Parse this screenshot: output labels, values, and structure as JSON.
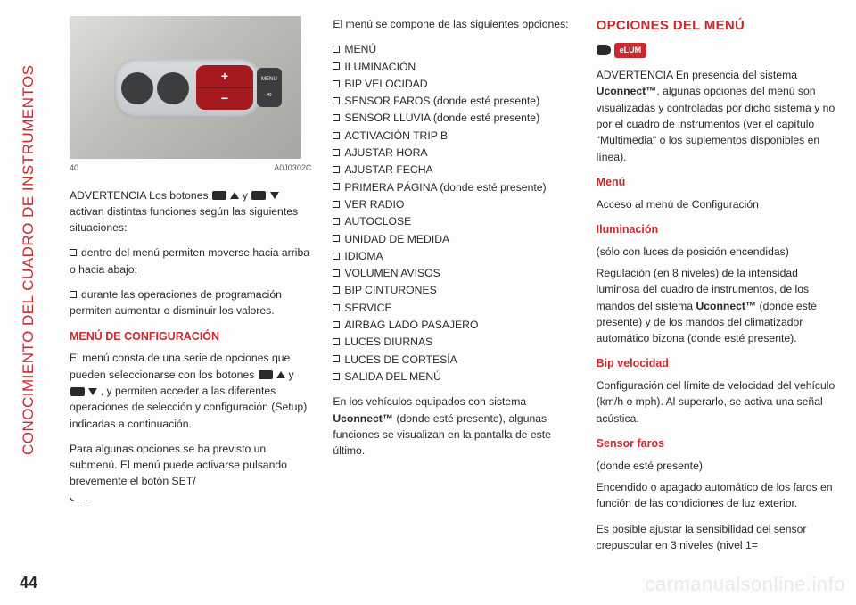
{
  "vertical_header": "CONOCIMIENTO DEL CUADRO DE INSTRUMENTOS",
  "page_number": "44",
  "watermark": "carmanualsonline.info",
  "figure": {
    "num": "40",
    "code": "A0J0302C",
    "menu_label": "MENU"
  },
  "col1": {
    "advertencia_pre": "ADVERTENCIA Los botones ",
    "advertencia_mid": " y ",
    "advertencia_post": " activan distintas funciones según las siguientes situaciones:",
    "b1": "dentro del menú permiten moverse hacia arriba o hacia abajo;",
    "b2": "durante las operaciones de programación permiten aumentar o disminuir los valores.",
    "h_menu": "MENÚ DE CONFIGURACIÓN",
    "p_menu1a": "El menú consta de una serie de opciones que pueden seleccionarse con los botones ",
    "p_menu1b": " y ",
    "p_menu1c": " , y permiten acceder a las diferentes operaciones de selección y configuración (Setup) indicadas a continuación.",
    "p_menu2": "Para algunas opciones se ha previsto un submenú. El menú puede activarse pulsando brevemente el botón SET/"
  },
  "col2": {
    "intro": "El menú se compone de las siguientes opciones:",
    "items": [
      "MENÚ",
      "ILUMINACIÓN",
      "BIP VELOCIDAD",
      "SENSOR FAROS (donde esté presente)",
      "SENSOR LLUVIA (donde esté presente)",
      "ACTIVACIÓN TRIP B",
      "AJUSTAR HORA",
      "AJUSTAR FECHA",
      "PRIMERA PÁGINA (donde esté presente)",
      "VER RADIO",
      "AUTOCLOSE",
      "UNIDAD DE MEDIDA",
      "IDIOMA",
      "VOLUMEN AVISOS",
      "BIP CINTURONES",
      "SERVICE",
      "AIRBAG LADO PASAJERO",
      "LUCES DIURNAS",
      "LUCES DE CORTESÍA",
      "SALIDA DEL MENÚ"
    ],
    "footer_a": "En los vehículos equipados con sistema ",
    "footer_b": "Uconnect™",
    "footer_c": " (donde esté presente), algunas funciones se visualizan en la pantalla de este último."
  },
  "col3": {
    "h_opciones": "OPCIONES DEL MENÚ",
    "elum": "eLUM",
    "adv_a": "ADVERTENCIA En presencia del sistema ",
    "adv_b": "Uconnect™",
    "adv_c": ", algunas opciones del menú son visualizadas y controladas por dicho sistema y no por el cuadro de instrumentos (ver el capítulo \"Multimedia\" o los suplementos disponibles en línea).",
    "h_menu": "Menú",
    "p_menu": "Acceso al menú de Configuración",
    "h_ilum": "Iluminación",
    "p_ilum_sub": "(sólo con luces de posición encendidas)",
    "p_ilum_a": "Regulación (en 8 niveles) de la intensidad luminosa del cuadro de instrumentos, de los mandos del sistema ",
    "p_ilum_b": "Uconnect™",
    "p_ilum_c": " (donde esté presente) y de los mandos del climatizador automático bizona (donde esté presente).",
    "h_bip": "Bip velocidad",
    "p_bip": "Configuración del límite de velocidad del vehículo (km/h o mph). Al superarlo, se activa una señal acústica.",
    "h_sensor": "Sensor faros",
    "p_sensor_sub": "(donde esté presente)",
    "p_sensor": "Encendido o apagado automático de los faros en función de las condiciones de luz exterior.",
    "p_sensor2": "Es posible ajustar la sensibilidad del sensor crepuscular en 3 niveles (nivel 1="
  }
}
